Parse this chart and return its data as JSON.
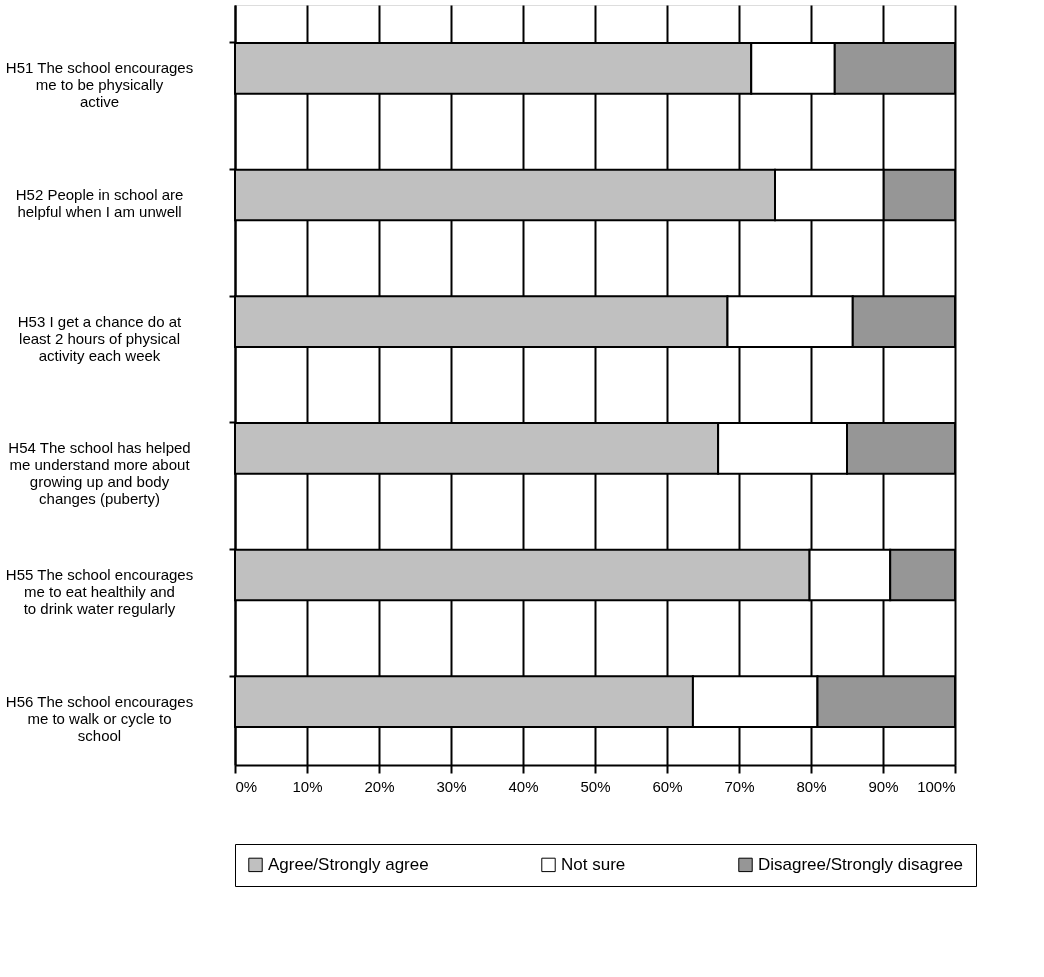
{
  "chart_data": {
    "type": "bar",
    "orientation": "horizontal",
    "stacked": true,
    "categories": [
      "H51 The school encourages me to be physically active",
      "H52 People in school are helpful when I am unwell",
      "H53 I get a chance do at least 2 hours of physical activity each week",
      "H54 The school has helped me understand more about growing up and body changes (puberty)",
      "H55 The school encourages me to eat healthily and to drink water regularly",
      "H56 The school encourages me to walk or cycle to school"
    ],
    "series": [
      {
        "name": "Agree/Strongly agree",
        "color": "#c0c0c0",
        "values": [
          71.7,
          75.0,
          68.4,
          67.1,
          79.8,
          63.6
        ]
      },
      {
        "name": "Not sure",
        "color": "#ffffff",
        "values": [
          11.6,
          15.1,
          17.4,
          17.9,
          11.2,
          17.3
        ]
      },
      {
        "name": "Disagree/Strongly disagree",
        "color": "#969696",
        "values": [
          16.7,
          9.9,
          14.2,
          15.0,
          9.0,
          19.1
        ]
      }
    ],
    "xlim": [
      0,
      100
    ],
    "xticks": [
      {
        "value": 0,
        "label": "0%"
      },
      {
        "value": 10,
        "label": "10%"
      },
      {
        "value": 20,
        "label": "20%"
      },
      {
        "value": 30,
        "label": "30%"
      },
      {
        "value": 40,
        "label": "40%"
      },
      {
        "value": 50,
        "label": "50%"
      },
      {
        "value": 60,
        "label": "60%"
      },
      {
        "value": 70,
        "label": "70%"
      },
      {
        "value": 80,
        "label": "80%"
      },
      {
        "value": 90,
        "label": "90%"
      },
      {
        "value": 100,
        "label": "100%"
      }
    ],
    "grid": "x",
    "legend": "bottom"
  }
}
